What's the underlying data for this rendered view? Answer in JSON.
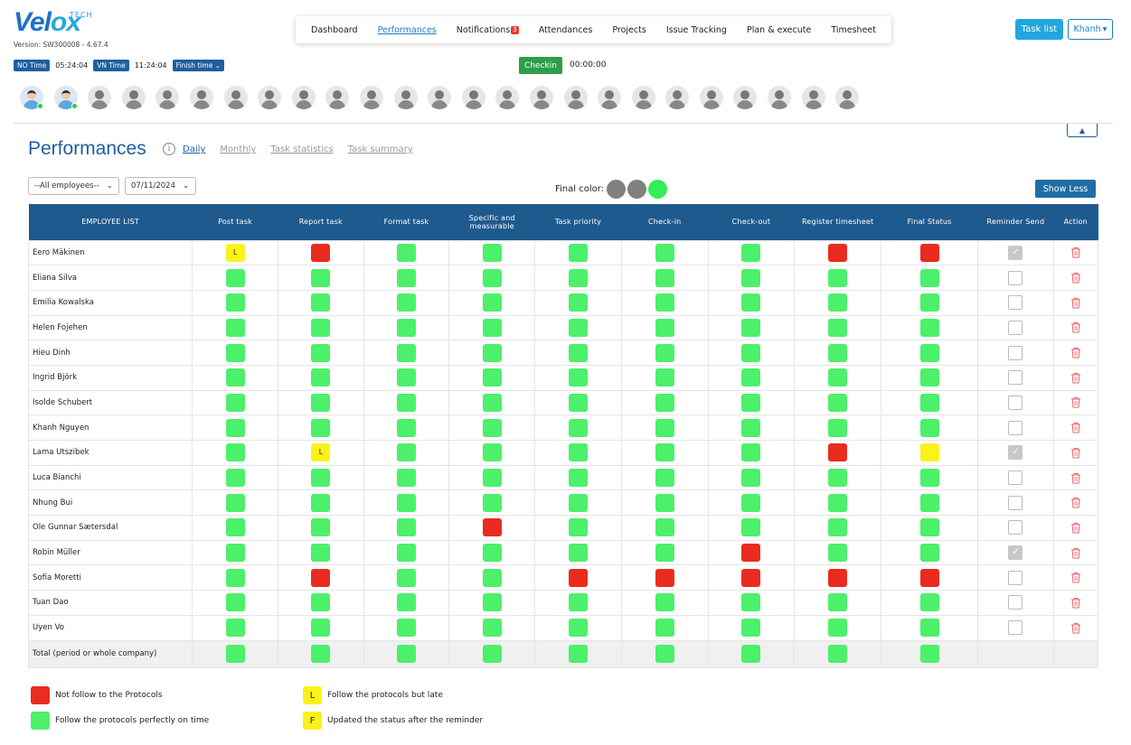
{
  "app": {
    "logo_main": "Vel",
    "logo_x": "ox",
    "logo_tech": "TECH",
    "version": "Version: SW300008 - 4.67.4"
  },
  "nav": {
    "items": [
      {
        "label": "Dashboard",
        "active": false
      },
      {
        "label": "Performances",
        "active": true
      },
      {
        "label": "Notifications",
        "active": false,
        "badge": "3"
      },
      {
        "label": "Attendances",
        "active": false
      },
      {
        "label": "Projects",
        "active": false
      },
      {
        "label": "Issue Tracking",
        "active": false
      },
      {
        "label": "Plan & execute",
        "active": false
      },
      {
        "label": "Timesheet",
        "active": false
      }
    ]
  },
  "header": {
    "task_list": "Task list",
    "user": "Khanh"
  },
  "times": {
    "no_label": "NO Time",
    "no_value": "05:24:04",
    "vn_label": "VN Time",
    "vn_value": "11:24:04",
    "finish_label": "Finish time"
  },
  "checkin": {
    "label": "Checkin",
    "timer": "00:00:00"
  },
  "avatars": {
    "count": 25,
    "online": [
      0,
      1
    ]
  },
  "page": {
    "title": "Performances",
    "tabs": [
      {
        "label": "Daily",
        "active": true
      },
      {
        "label": "Monthly",
        "active": false
      },
      {
        "label": "Task statistics",
        "active": false
      },
      {
        "label": "Task summary",
        "active": false
      }
    ],
    "employee_filter": "--All employees--",
    "date_filter": "07/11/2024",
    "final_color_label": "Final color:",
    "final_colors": [
      "#808080",
      "#808080",
      "#33ee55"
    ],
    "show_less": "Show Less"
  },
  "colors": {
    "G": "#4cf06a",
    "R": "#ea2b1f",
    "Y": "#fbf21a",
    "header_bg": "#1f5a8e"
  },
  "table": {
    "columns": [
      "EMPLOYEE LIST",
      "Post task",
      "Report task",
      "Format task",
      "Specific and measurable",
      "Task priority",
      "Check-in",
      "Check-out",
      "Register timesheet",
      "Final Status",
      "Reminder Send",
      "Action"
    ],
    "rows": [
      {
        "name": "Eero Mäkinen",
        "cells": [
          "Y:L",
          "R",
          "G",
          "G",
          "G",
          "G",
          "G",
          "R",
          "R"
        ],
        "reminder": true
      },
      {
        "name": "Eliana Silva",
        "cells": [
          "G",
          "G",
          "G",
          "G",
          "G",
          "G",
          "G",
          "G",
          "G"
        ],
        "reminder": false
      },
      {
        "name": "Emilia Kowalska",
        "cells": [
          "G",
          "G",
          "G",
          "G",
          "G",
          "G",
          "G",
          "G",
          "G"
        ],
        "reminder": false
      },
      {
        "name": "Helen Fojehen",
        "cells": [
          "G",
          "G",
          "G",
          "G",
          "G",
          "G",
          "G",
          "G",
          "G"
        ],
        "reminder": false
      },
      {
        "name": "Hieu Dinh",
        "cells": [
          "G",
          "G",
          "G",
          "G",
          "G",
          "G",
          "G",
          "G",
          "G"
        ],
        "reminder": false
      },
      {
        "name": "Ingrid Björk",
        "cells": [
          "G",
          "G",
          "G",
          "G",
          "G",
          "G",
          "G",
          "G",
          "G"
        ],
        "reminder": false
      },
      {
        "name": "Isolde Schubert",
        "cells": [
          "G",
          "G",
          "G",
          "G",
          "G",
          "G",
          "G",
          "G",
          "G"
        ],
        "reminder": false
      },
      {
        "name": "Khanh Nguyen",
        "cells": [
          "G",
          "G",
          "G",
          "G",
          "G",
          "G",
          "G",
          "G",
          "G"
        ],
        "reminder": false
      },
      {
        "name": "Lama Utszibek",
        "cells": [
          "G",
          "Y:L",
          "G",
          "G",
          "G",
          "G",
          "G",
          "R",
          "Y"
        ],
        "reminder": true
      },
      {
        "name": "Luca Bianchi",
        "cells": [
          "G",
          "G",
          "G",
          "G",
          "G",
          "G",
          "G",
          "G",
          "G"
        ],
        "reminder": false
      },
      {
        "name": "Nhung Bui",
        "cells": [
          "G",
          "G",
          "G",
          "G",
          "G",
          "G",
          "G",
          "G",
          "G"
        ],
        "reminder": false
      },
      {
        "name": "Ole Gunnar Sætersdal",
        "cells": [
          "G",
          "G",
          "G",
          "R",
          "G",
          "G",
          "G",
          "G",
          "G"
        ],
        "reminder": false
      },
      {
        "name": "Robin Müller",
        "cells": [
          "G",
          "G",
          "G",
          "G",
          "G",
          "G",
          "R",
          "G",
          "G"
        ],
        "reminder": true
      },
      {
        "name": "Sofia Moretti",
        "cells": [
          "G",
          "R",
          "G",
          "G",
          "R",
          "R",
          "R",
          "R",
          "R"
        ],
        "reminder": false
      },
      {
        "name": "Tuan Dao",
        "cells": [
          "G",
          "G",
          "G",
          "G",
          "G",
          "G",
          "G",
          "G",
          "G"
        ],
        "reminder": false
      },
      {
        "name": "Uyen Vo",
        "cells": [
          "G",
          "G",
          "G",
          "G",
          "G",
          "G",
          "G",
          "G",
          "G"
        ],
        "reminder": false
      }
    ],
    "total": {
      "name": "Total (period or whole company)",
      "cells": [
        "G",
        "G",
        "G",
        "G",
        "G",
        "G",
        "G",
        "G",
        "G"
      ]
    }
  },
  "legend": {
    "red": "Not follow to the Protocols",
    "green": "Follow the protocols perfectly on time",
    "late_letter": "L",
    "late": "Follow the protocols but late",
    "reminder_letter": "F",
    "reminder": "Updated the status after the reminder"
  }
}
